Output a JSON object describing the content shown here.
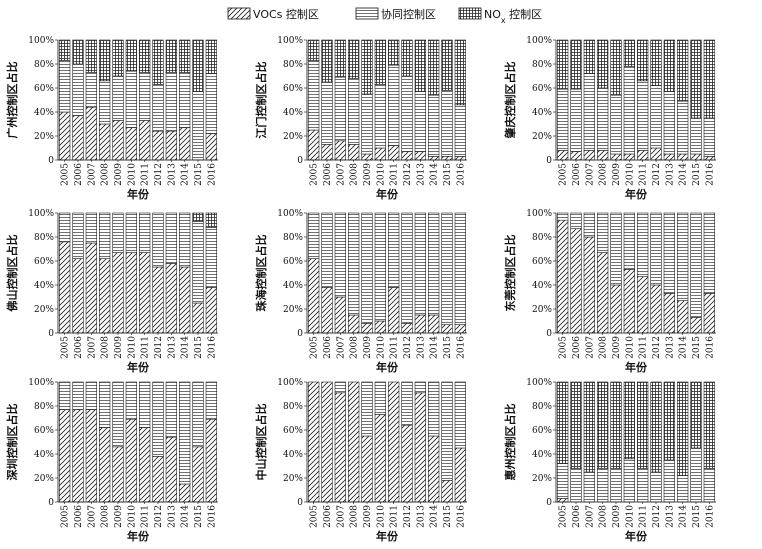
{
  "chart_data": {
    "type": "bar",
    "stacked": true,
    "normalized": true,
    "legend": {
      "placement": "top-center",
      "entries": [
        {
          "label": "VOCs 控制区",
          "pattern": "diagonal-hatch"
        },
        {
          "label": "协同控制区",
          "pattern": "horizontal-lines"
        },
        {
          "label": "NOx 控制区",
          "pattern": "grid"
        }
      ]
    },
    "categories": [
      "2005",
      "2006",
      "2007",
      "2008",
      "2009",
      "2010",
      "2011",
      "2012",
      "2013",
      "2014",
      "2015",
      "2016"
    ],
    "y_ticks": [
      "0",
      "20%",
      "40%",
      "60%",
      "80%",
      "100%"
    ],
    "ylim": [
      0,
      100
    ],
    "xlabel": "年份",
    "series_order": [
      "VOCs 控制区",
      "协同控制区",
      "NOx 控制区"
    ],
    "panels": [
      {
        "ylabel": "广州控制区占比",
        "voc": [
          40,
          37,
          44,
          30,
          33,
          27,
          33,
          24,
          24,
          27,
          0,
          22
        ],
        "co": [
          43,
          43,
          29,
          36,
          37,
          47,
          40,
          39,
          49,
          46,
          57,
          50
        ],
        "nox": [
          17,
          20,
          27,
          34,
          30,
          26,
          27,
          37,
          27,
          27,
          43,
          28
        ]
      },
      {
        "ylabel": "江门控制区占比",
        "voc": [
          25,
          13,
          16,
          13,
          5,
          10,
          12,
          7,
          7,
          3,
          3,
          3
        ],
        "co": [
          58,
          52,
          53,
          55,
          50,
          53,
          67,
          63,
          50,
          51,
          55,
          43
        ],
        "nox": [
          17,
          35,
          31,
          32,
          45,
          37,
          21,
          30,
          43,
          46,
          42,
          54
        ]
      },
      {
        "ylabel": "肇庆控制区占比",
        "voc": [
          8,
          7,
          8,
          8,
          5,
          5,
          8,
          10,
          5,
          5,
          5,
          3
        ],
        "co": [
          51,
          52,
          64,
          52,
          49,
          73,
          58,
          52,
          52,
          44,
          30,
          32
        ],
        "nox": [
          41,
          41,
          28,
          40,
          46,
          22,
          34,
          38,
          43,
          51,
          65,
          65
        ]
      },
      {
        "ylabel": "佛山控制区占比",
        "voc": [
          76,
          62,
          75,
          62,
          67,
          67,
          67,
          55,
          58,
          55,
          25,
          38
        ],
        "co": [
          24,
          38,
          25,
          38,
          33,
          33,
          33,
          45,
          42,
          45,
          68,
          50
        ],
        "nox": [
          0,
          0,
          0,
          0,
          0,
          0,
          0,
          0,
          0,
          0,
          7,
          12
        ]
      },
      {
        "ylabel": "珠海控制区占比",
        "voc": [
          62,
          38,
          30,
          15,
          8,
          10,
          38,
          8,
          15,
          15,
          7,
          7
        ],
        "co": [
          38,
          62,
          70,
          85,
          92,
          90,
          62,
          92,
          85,
          85,
          93,
          93
        ],
        "nox": [
          0,
          0,
          0,
          0,
          0,
          0,
          0,
          0,
          0,
          0,
          0,
          0
        ]
      },
      {
        "ylabel": "东莞控制区占比",
        "voc": [
          94,
          87,
          80,
          67,
          40,
          53,
          47,
          40,
          33,
          27,
          13,
          33
        ],
        "co": [
          6,
          13,
          20,
          33,
          60,
          47,
          53,
          60,
          67,
          73,
          87,
          67
        ],
        "nox": [
          0,
          0,
          0,
          0,
          0,
          0,
          0,
          0,
          0,
          0,
          0,
          0
        ]
      },
      {
        "ylabel": "深圳控制区占比",
        "voc": [
          77,
          77,
          77,
          62,
          46,
          69,
          62,
          38,
          54,
          15,
          46,
          69
        ],
        "co": [
          23,
          23,
          23,
          38,
          54,
          31,
          38,
          62,
          46,
          85,
          54,
          31
        ],
        "nox": [
          0,
          0,
          0,
          0,
          0,
          0,
          0,
          0,
          0,
          0,
          0,
          0
        ]
      },
      {
        "ylabel": "中山控制区占比",
        "voc": [
          100,
          100,
          91,
          100,
          55,
          73,
          100,
          64,
          91,
          55,
          18,
          45
        ],
        "co": [
          0,
          0,
          9,
          0,
          45,
          27,
          0,
          36,
          9,
          45,
          82,
          55
        ],
        "nox": [
          0,
          0,
          0,
          0,
          0,
          0,
          0,
          0,
          0,
          0,
          0,
          0
        ]
      },
      {
        "ylabel": "惠州控制区占比",
        "voc": [
          3,
          0,
          0,
          0,
          0,
          0,
          0,
          0,
          0,
          0,
          0,
          0
        ],
        "co": [
          29,
          28,
          25,
          28,
          28,
          36,
          28,
          25,
          35,
          22,
          45,
          28
        ],
        "nox": [
          68,
          72,
          75,
          72,
          72,
          64,
          72,
          75,
          65,
          78,
          55,
          72
        ]
      }
    ]
  }
}
